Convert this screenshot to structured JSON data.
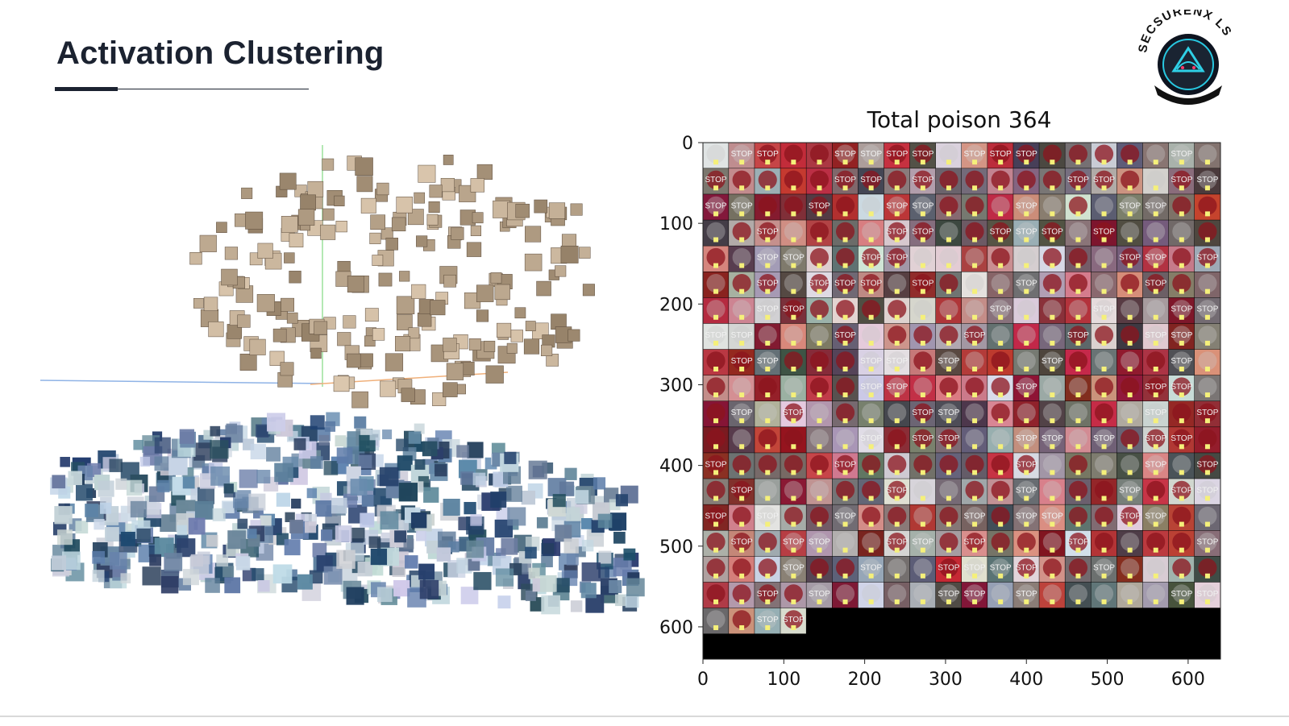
{
  "slide": {
    "title": "Activation Clustering"
  },
  "logo": {
    "brand_text": "SECSURENX LS",
    "icon": "hooded-figure-shield-icon"
  },
  "colors": {
    "title": "#1b2230",
    "cluster_clean": "#3a6a94",
    "cluster_poison": "#b39a82",
    "axis_green": "#9be09b",
    "axis_blue": "#8fb3e6",
    "axis_orange": "#f0b07a"
  },
  "chart_data": [
    {
      "type": "scatter",
      "title": "",
      "description_visible": "3D projection of activations: two clusters of image thumbnails",
      "series": [
        {
          "name": "",
          "color": "#b39a82",
          "count": 260
        },
        {
          "name": "",
          "color": "#3a6a94",
          "count": 620
        }
      ]
    },
    {
      "type": "heatmap",
      "title": "Total poison 364",
      "x_ticks": [
        "0",
        "100",
        "200",
        "300",
        "400",
        "500",
        "600"
      ],
      "y_ticks": [
        "0",
        "100",
        "200",
        "300",
        "400",
        "500",
        "600"
      ],
      "xlim": [
        0,
        640
      ],
      "ylim": [
        640,
        0
      ],
      "grid_columns": 20,
      "tiles_total": 364,
      "tile_labels": [
        "STOP"
      ]
    }
  ]
}
